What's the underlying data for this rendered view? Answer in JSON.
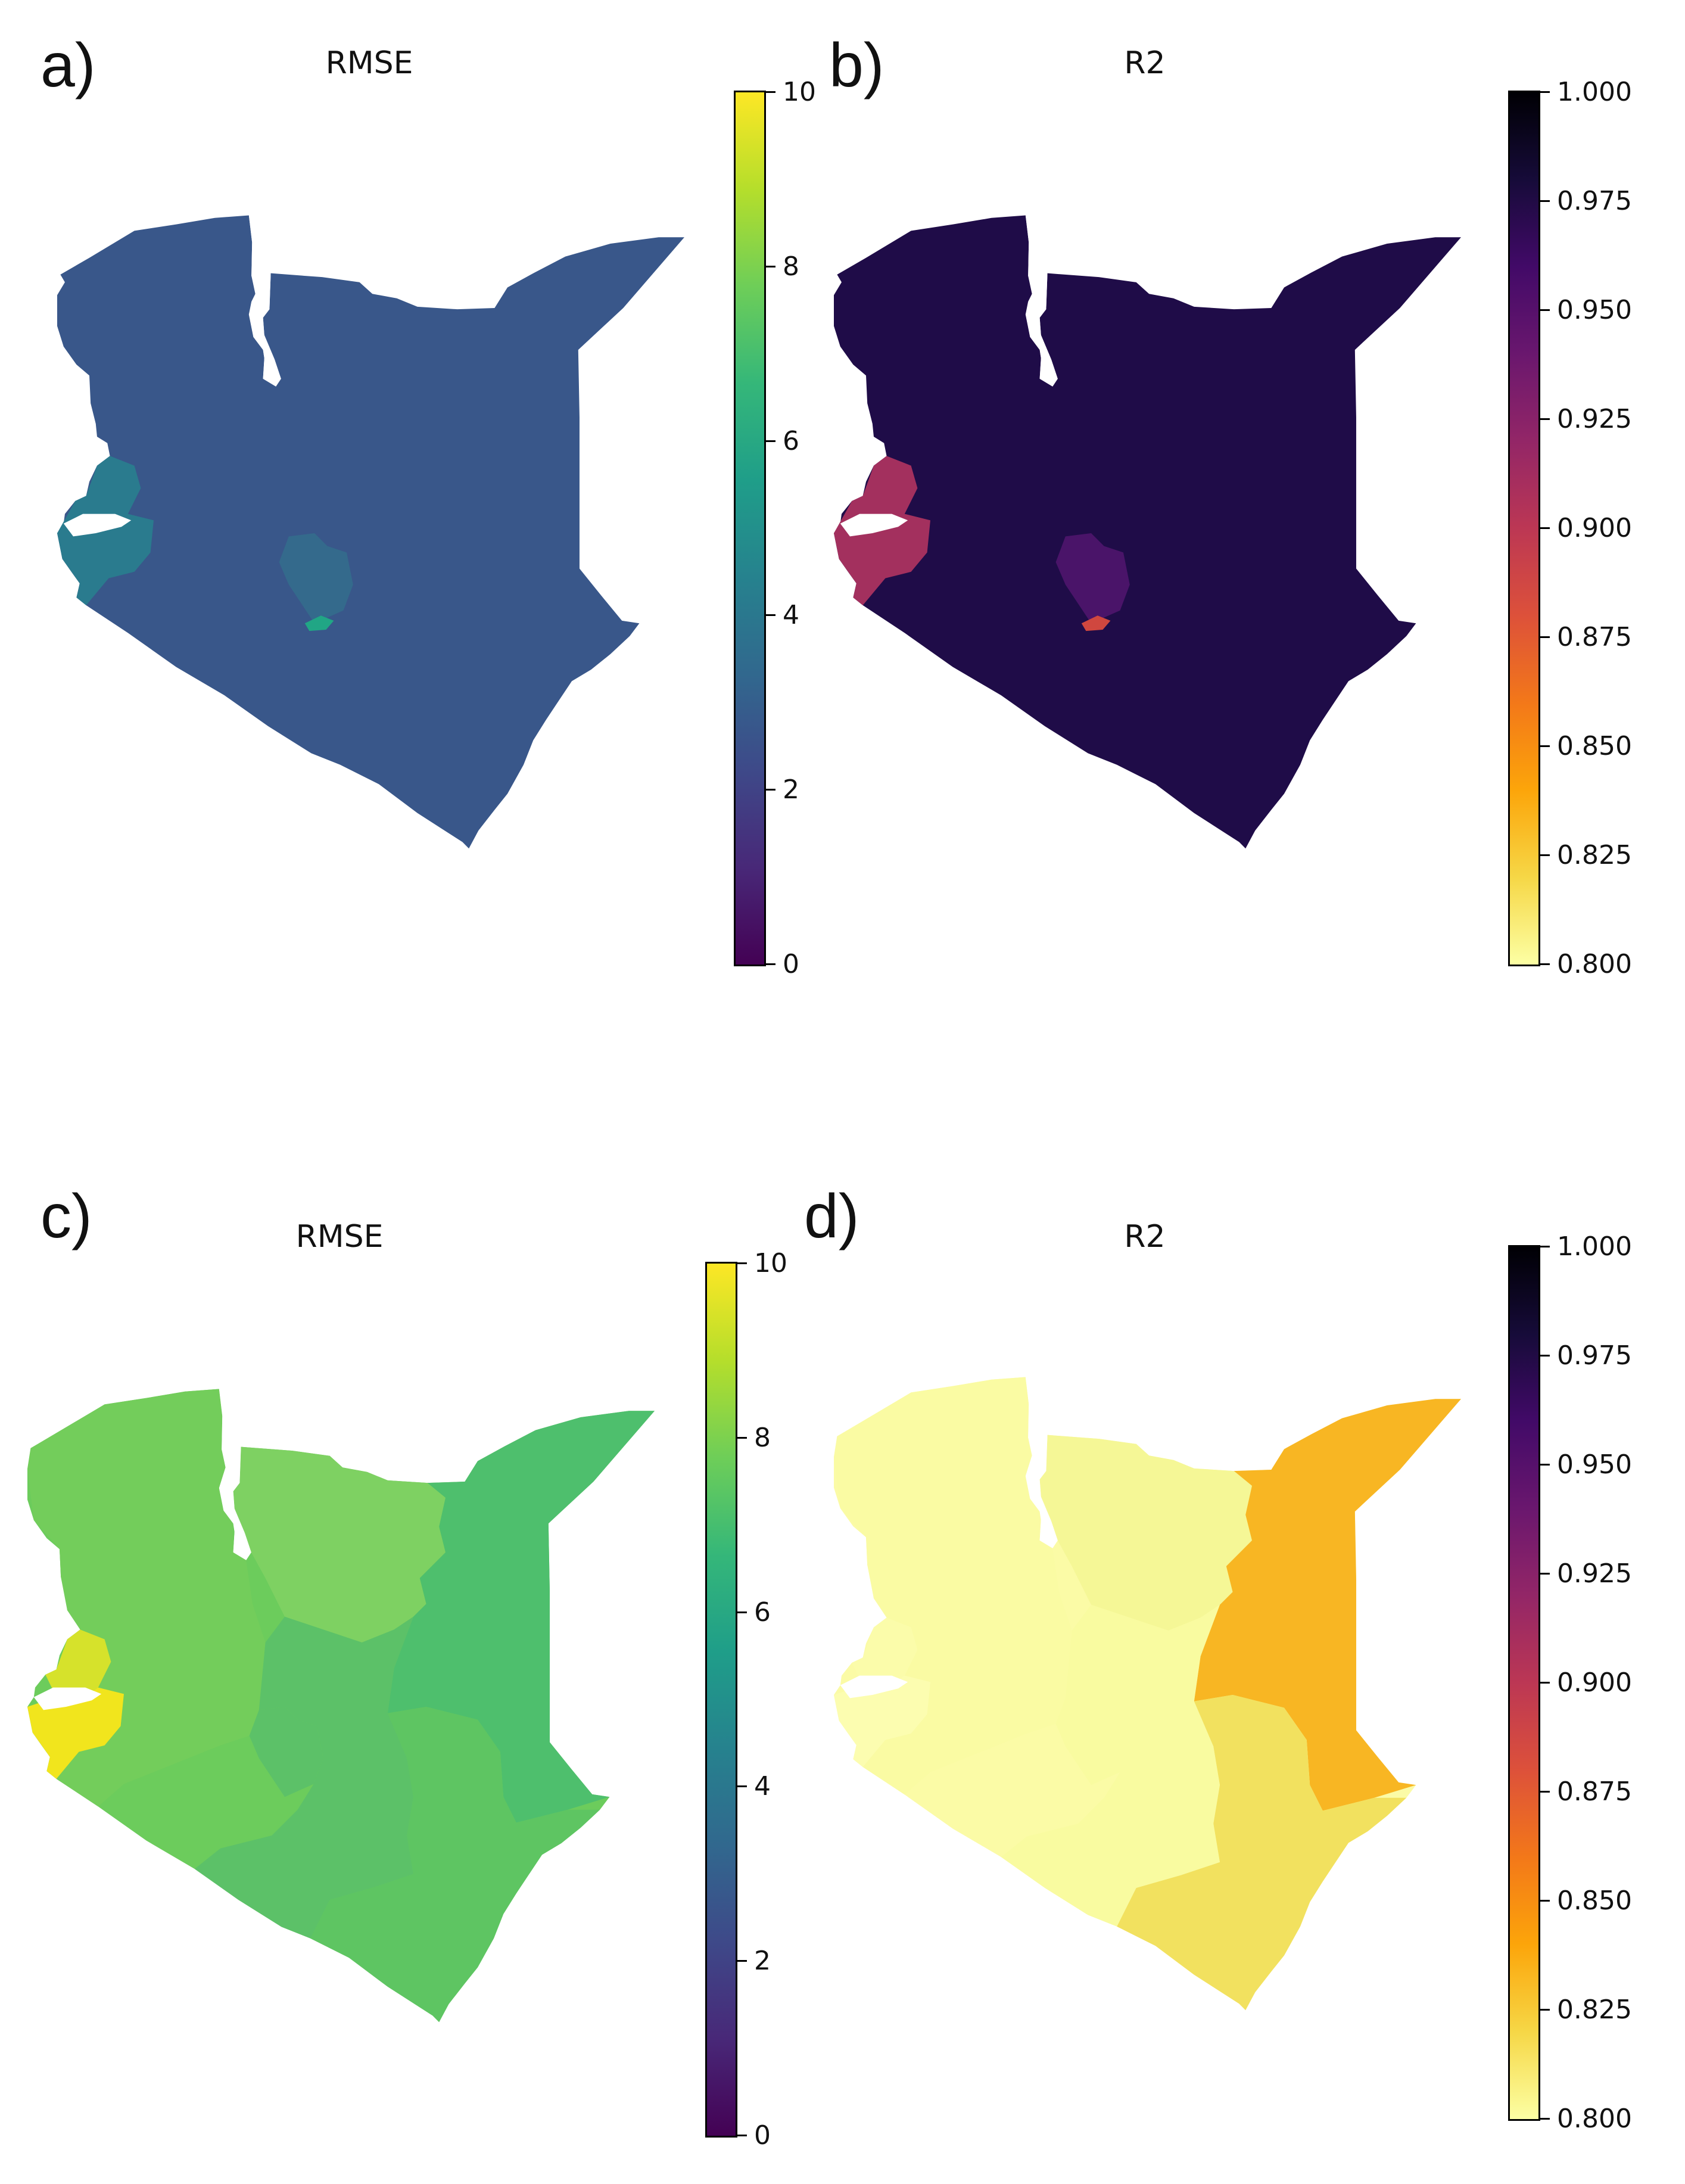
{
  "panels": [
    {
      "letter": "a)",
      "title": "RMSE",
      "colormap": "viridis",
      "ticks": [
        "0",
        "2",
        "4",
        "6",
        "8",
        "10"
      ],
      "colors": {
        "base": "#39578a",
        "west": "#2a7b8e",
        "central": "#346a8c",
        "spot": "#21a685"
      }
    },
    {
      "letter": "b)",
      "title": "R2",
      "colormap": "inferno_r",
      "ticks": [
        "0.800",
        "0.825",
        "0.850",
        "0.875",
        "0.900",
        "0.925",
        "0.950",
        "0.975",
        "1.000"
      ],
      "colors": {
        "base": "#1f0c48",
        "west": "#a3305e",
        "central": "#4a1469",
        "spot": "#d0473f"
      }
    },
    {
      "letter": "c)",
      "title": "RMSE",
      "colormap": "viridis",
      "ticks": [
        "0",
        "2",
        "4",
        "6",
        "8",
        "10"
      ],
      "colors": {
        "base": "#6ccc5c",
        "nw": "#73cd5b",
        "north": "#7ed162",
        "east": "#4ebf6d",
        "se": "#5ec562",
        "central": "#5cc168",
        "west": "#d6e22b",
        "west2": "#f1e51d"
      }
    },
    {
      "letter": "d)",
      "title": "R2",
      "colormap": "inferno_r",
      "ticks": [
        "0.800",
        "0.825",
        "0.850",
        "0.875",
        "0.900",
        "0.925",
        "0.950",
        "0.975",
        "1.000"
      ],
      "colors": {
        "base": "#fbfba6",
        "nw": "#fafba3",
        "north": "#f5f796",
        "east": "#f8b623",
        "se": "#f2e15f",
        "central": "#f9fba0",
        "west": "#fbfcaa",
        "west2": "#fcfdb0"
      }
    }
  ]
}
